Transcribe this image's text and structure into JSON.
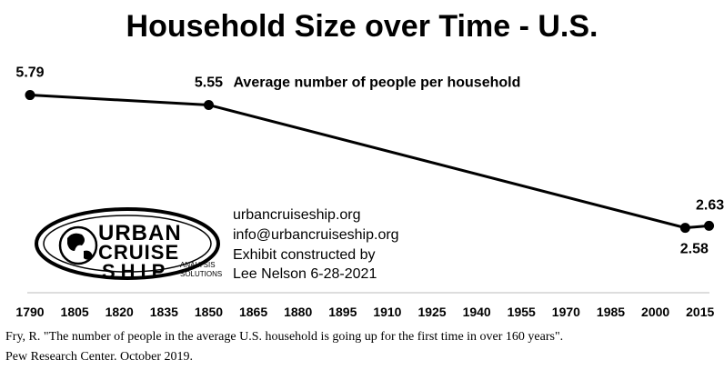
{
  "chart_data": {
    "type": "line",
    "title": "Household Size over Time - U.S.",
    "series": [
      {
        "name": "Average number of people per household",
        "x": [
          1790,
          1850,
          2010,
          2018
        ],
        "values": [
          5.79,
          5.55,
          2.58,
          2.63
        ],
        "labels": [
          "5.79",
          "5.55",
          "2.58",
          "2.63"
        ]
      }
    ],
    "xticks": [
      "1790",
      "1805",
      "1820",
      "1835",
      "1850",
      "1865",
      "1880",
      "1895",
      "1910",
      "1925",
      "1940",
      "1955",
      "1970",
      "1985",
      "2000",
      "2015"
    ],
    "xlim": [
      1790,
      2020
    ],
    "ylim": [
      0,
      6.5
    ],
    "grid": false,
    "line_color": "#000000"
  },
  "contact": {
    "line1": "urbancruiseship.org",
    "line2": "info@urbancruiseship.org",
    "line3": "Exhibit constructed by",
    "line4": "Lee Nelson 6-28-2021"
  },
  "logo": {
    "word1": "URBAN",
    "word2": "CRUISE",
    "word3": "SHIP",
    "sub1": "ANALYSIS",
    "sub2": "SOLUTIONS"
  },
  "citation": {
    "line1": "Fry, R. \"The number of people in the average U.S. household is going up for the first time in over 160 years\".",
    "line2": "Pew Research Center. October 2019."
  }
}
